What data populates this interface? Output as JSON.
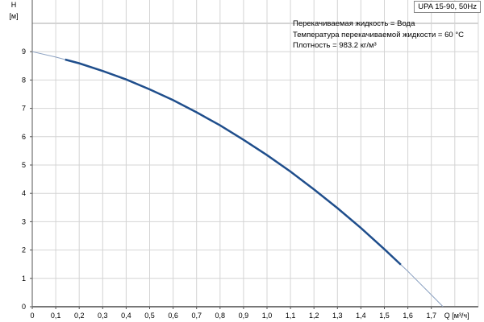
{
  "chart_data": {
    "type": "line",
    "title": "UPA 15-90, 50Hz",
    "xlabel": "Q [м³/ч]",
    "ylabel_top": "H",
    "ylabel_unit": "[м]",
    "xlim": [
      0,
      1.9
    ],
    "ylim": [
      0,
      10
    ],
    "x_ticks": [
      "0",
      "0,1",
      "0,2",
      "0,3",
      "0,4",
      "0,5",
      "0,6",
      "0,7",
      "0,8",
      "0,9",
      "1,0",
      "1,1",
      "1,2",
      "1,3",
      "1,4",
      "1,5",
      "1,6",
      "1,7"
    ],
    "y_ticks": [
      "0",
      "1",
      "2",
      "3",
      "4",
      "5",
      "6",
      "7",
      "8",
      "9"
    ],
    "grid": true,
    "annotations": [
      "Перекачиваемая жидкость = Вода",
      "Температура перекачиваемой жидкости = 60 °C",
      "Плотность = 983.2 кг/м³"
    ],
    "series": [
      {
        "color": "#1f4e8c",
        "x": [
          0,
          0.1,
          0.2,
          0.3,
          0.4,
          0.5,
          0.6,
          0.7,
          0.8,
          0.9,
          1.0,
          1.1,
          1.2,
          1.3,
          1.4,
          1.5,
          1.6,
          1.7,
          1.75
        ],
        "y": [
          9,
          8.81,
          8.59,
          8.32,
          8.02,
          7.67,
          7.29,
          6.86,
          6.4,
          5.89,
          5.35,
          4.77,
          4.14,
          3.48,
          2.78,
          2.03,
          1.25,
          0.42,
          0
        ],
        "operating_range": [
          0.14,
          1.57
        ]
      }
    ]
  }
}
